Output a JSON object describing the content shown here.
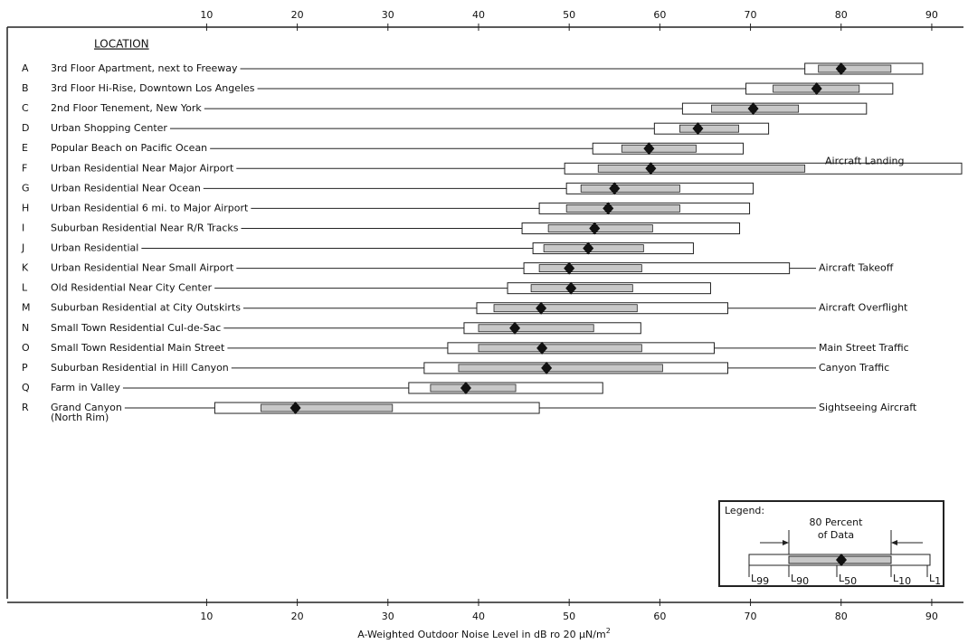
{
  "chart_data": {
    "type": "percentile",
    "header": "LOCATION",
    "xlabel": "A-Weighted Outdoor Noise Level in dB ro 20 μN/m",
    "xlabel_sup": "2",
    "xlim": [
      -12,
      93.5
    ],
    "xticks": [
      10,
      20,
      30,
      40,
      50,
      60,
      70,
      80,
      90
    ],
    "rows": [
      {
        "letter": "A",
        "location": "3rd Floor Apartment, next to Freeway",
        "values": [
          76,
          77.5,
          80,
          85.5,
          89
        ]
      },
      {
        "letter": "B",
        "location": "3rd Floor Hi-Rise, Downtown Los Angeles",
        "values": [
          69.5,
          72.5,
          77.3,
          82,
          85.7
        ]
      },
      {
        "letter": "C",
        "location": "2nd Floor Tenement, New York",
        "values": [
          62.5,
          65.7,
          70.3,
          75.3,
          82.8
        ]
      },
      {
        "letter": "D",
        "location": "Urban Shopping Center",
        "values": [
          59.4,
          62.2,
          64.2,
          68.7,
          72
        ]
      },
      {
        "letter": "E",
        "location": "Popular Beach on Pacific Ocean",
        "values": [
          52.6,
          55.8,
          58.8,
          64,
          69.2
        ]
      },
      {
        "letter": "F",
        "location": "Urban Residential Near Major Airport",
        "annotation": "Aircraft Landing",
        "values": [
          49.5,
          53.2,
          59,
          76,
          93.3
        ]
      },
      {
        "letter": "G",
        "location": "Urban Residential Near Ocean",
        "values": [
          49.7,
          51.3,
          55,
          62.2,
          70.3
        ]
      },
      {
        "letter": "H",
        "location": "Urban Residential 6 mi. to Major Airport",
        "values": [
          46.7,
          49.7,
          54.3,
          62.2,
          69.9
        ]
      },
      {
        "letter": "I",
        "location": "Suburban Residential Near R/R Tracks",
        "values": [
          44.8,
          47.7,
          52.8,
          59.2,
          68.8
        ]
      },
      {
        "letter": "J",
        "location": "Urban Residential",
        "values": [
          46,
          47.2,
          52.1,
          58.2,
          63.7
        ]
      },
      {
        "letter": "K",
        "location": "Urban Residential Near Small Airport",
        "annotation": "Aircraft Takeoff",
        "values": [
          45,
          46.7,
          50,
          58,
          74.3
        ]
      },
      {
        "letter": "L",
        "location": "Old Residential Near City Center",
        "values": [
          43.2,
          45.8,
          50.2,
          57,
          65.6
        ]
      },
      {
        "letter": "M",
        "location": "Suburban Residential at City Outskirts",
        "annotation": "Aircraft Overflight",
        "values": [
          39.8,
          41.7,
          46.9,
          57.5,
          67.5
        ]
      },
      {
        "letter": "N",
        "location": "Small Town Residential Cul-de-Sac",
        "values": [
          38.4,
          40,
          44,
          52.7,
          57.9
        ]
      },
      {
        "letter": "O",
        "location": "Small Town Residential Main Street",
        "annotation": "Main Street Traffic",
        "values": [
          36.6,
          40,
          47,
          58,
          66
        ]
      },
      {
        "letter": "P",
        "location": "Suburban Residential in Hill Canyon",
        "annotation": "Canyon Traffic",
        "values": [
          34,
          37.8,
          47.5,
          60.3,
          67.5
        ]
      },
      {
        "letter": "Q",
        "location": "Farm in Valley",
        "values": [
          32.3,
          34.7,
          38.6,
          44.1,
          53.7
        ]
      },
      {
        "letter": "R",
        "location": "Grand Canyon",
        "note": "(North Rim)",
        "annotation": "Sightseeing Aircraft",
        "values": [
          10.9,
          16,
          19.8,
          30.5,
          46.7
        ]
      }
    ],
    "legend": {
      "title": "Legend:",
      "range_label": [
        "80 Percent",
        "of Data"
      ],
      "prefix": "L",
      "percentiles": [
        "99",
        "90",
        "50",
        "10",
        "1"
      ]
    }
  }
}
